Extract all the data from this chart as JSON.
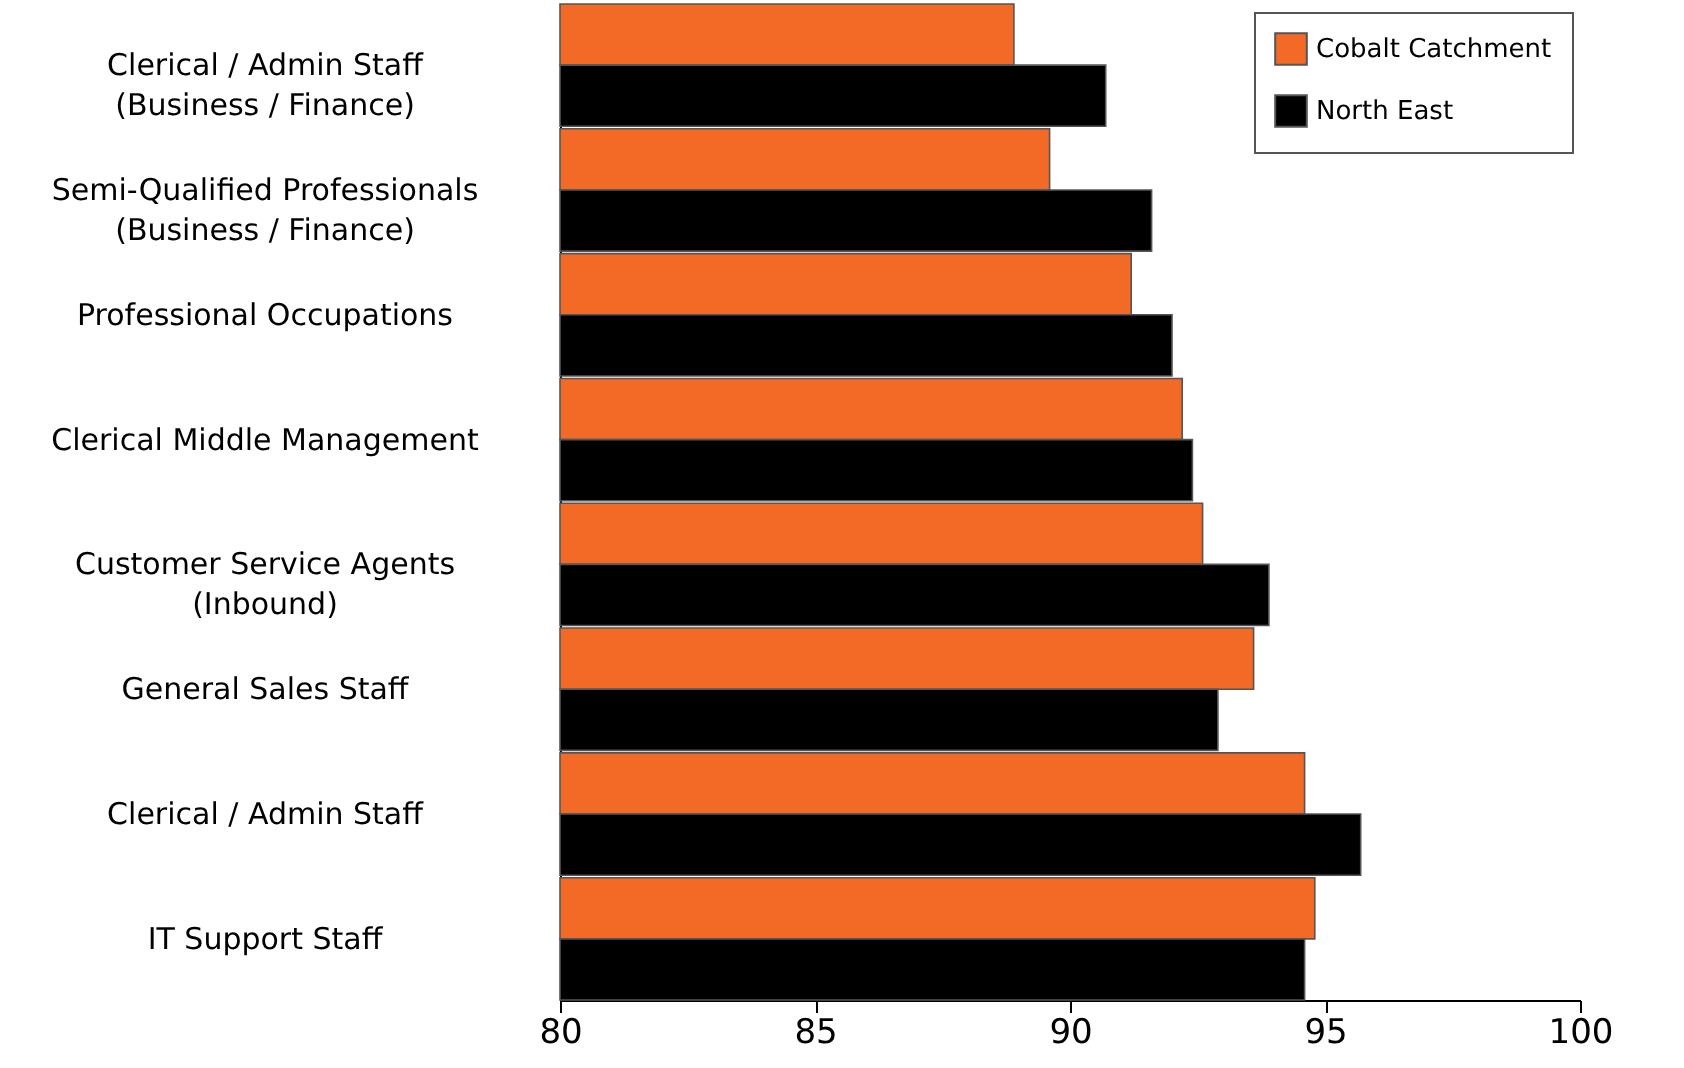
{
  "chart_data": {
    "type": "bar",
    "orientation": "horizontal",
    "categories": [
      "Clerical / Admin Staff\n(Business / Finance)",
      "Semi-Qualified Professionals\n(Business / Finance)",
      "Professional Occupations",
      "Clerical Middle Management",
      "Customer Service Agents\n(Inbound)",
      "General Sales Staff",
      "Clerical /  Admin Staff",
      "IT Support Staff"
    ],
    "series": [
      {
        "name": "Cobalt Catchment",
        "color": "#f26a26",
        "values": [
          88.9,
          89.6,
          91.2,
          92.2,
          92.6,
          93.6,
          94.6,
          94.8
        ]
      },
      {
        "name": "North East",
        "color": "#000000",
        "values": [
          90.7,
          91.6,
          92.0,
          92.4,
          93.9,
          92.9,
          95.7,
          94.6
        ]
      }
    ],
    "xlim": [
      80,
      100
    ],
    "xticks": [
      80,
      85,
      90,
      95,
      100
    ],
    "grid": false,
    "legend": "top right"
  }
}
